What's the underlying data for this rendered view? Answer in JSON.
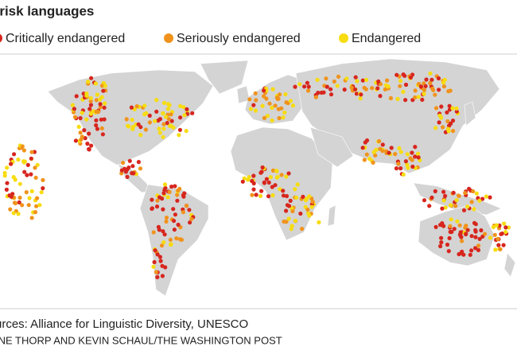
{
  "title": "t-risk languages",
  "legend": [
    {
      "label": "Critically endangered",
      "color": "#d7261e"
    },
    {
      "label": "Seriously endangered",
      "color": "#f0931c"
    },
    {
      "label": "Endangered",
      "color": "#f7dc10"
    }
  ],
  "source": "urces: Alliance for Linguistic Diversity, UNESCO",
  "credit": "INE THORP AND KEVIN SCHAUL/THE WASHINGTON POST"
}
